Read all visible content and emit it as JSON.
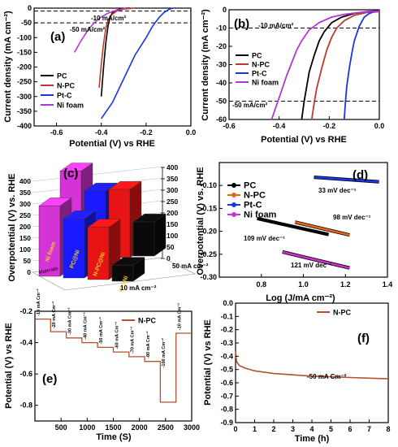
{
  "chart_data": [
    {
      "panel": "(a)",
      "type": "line",
      "xlabel": "Potential (V) vs RHE",
      "ylabel": "Current density (mA cm⁻²)",
      "xlim": [
        -0.7,
        0.0
      ],
      "ylim": [
        -400,
        0
      ],
      "xticks": [
        "-0.6",
        "-0.4",
        "-0.2",
        "0.0"
      ],
      "yticks": [
        "0",
        "-50",
        "-100",
        "-150",
        "-200",
        "-250",
        "-300",
        "-350",
        "-400"
      ],
      "reference_lines": [
        {
          "y": -10,
          "label": "-10 mA/cm²"
        },
        {
          "y": -50,
          "label": "-50 mA/cm²"
        }
      ],
      "legend_position": "bottom-left",
      "series": [
        {
          "name": "PC",
          "color": "#000000",
          "x": [
            -0.4,
            -0.39,
            -0.38,
            -0.37,
            -0.36,
            -0.35,
            -0.33,
            -0.31,
            -0.29,
            -0.27
          ],
          "y": [
            -300,
            -200,
            -120,
            -60,
            -30,
            -15,
            -6,
            -2,
            -1,
            0
          ]
        },
        {
          "name": "N-PC",
          "color": "#c0392b",
          "x": [
            -0.41,
            -0.4,
            -0.39,
            -0.38,
            -0.37,
            -0.35,
            -0.33,
            -0.3,
            -0.27,
            -0.25
          ],
          "y": [
            -270,
            -190,
            -120,
            -70,
            -40,
            -20,
            -9,
            -3,
            -1,
            0
          ]
        },
        {
          "name": "Pt-C",
          "color": "#1a35e6",
          "x": [
            -0.4,
            -0.35,
            -0.3,
            -0.25,
            -0.2,
            -0.17,
            -0.14,
            -0.12,
            -0.1,
            -0.08
          ],
          "y": [
            -375,
            -320,
            -240,
            -160,
            -100,
            -60,
            -30,
            -15,
            -5,
            0
          ]
        },
        {
          "name": "Ni foam",
          "color": "#b535d6",
          "x": [
            -0.52,
            -0.49,
            -0.46,
            -0.43,
            -0.4,
            -0.37,
            -0.34,
            -0.31,
            -0.29
          ],
          "y": [
            -150,
            -110,
            -75,
            -48,
            -30,
            -17,
            -9,
            -3,
            0
          ]
        }
      ]
    },
    {
      "panel": "(b)",
      "type": "line",
      "xlabel": "Potential (V) vs RHE",
      "ylabel": "Current density (mA cm⁻²)",
      "xlim": [
        -0.6,
        0.0
      ],
      "ylim": [
        -60,
        0
      ],
      "xticks": [
        "-0.6",
        "-0.4",
        "-0.2",
        "0.0"
      ],
      "yticks": [
        "0",
        "-10",
        "-20",
        "-30",
        "-40",
        "-50",
        "-60"
      ],
      "reference_lines": [
        {
          "y": -10,
          "label": "-10 mA/cm²"
        },
        {
          "y": -50,
          "label": "-50 mA/cm²"
        }
      ],
      "legend_position": "center-left",
      "series": [
        {
          "name": "PC",
          "color": "#000000",
          "x": [
            -0.31,
            -0.3,
            -0.29,
            -0.28,
            -0.26,
            -0.24,
            -0.22,
            -0.19,
            -0.15,
            -0.1,
            -0.05,
            0.0
          ],
          "y": [
            -60,
            -50,
            -42,
            -34,
            -25,
            -17,
            -12,
            -7,
            -4,
            -2,
            -1,
            -0.5
          ]
        },
        {
          "name": "N-PC",
          "color": "#c0392b",
          "x": [
            -0.27,
            -0.26,
            -0.25,
            -0.23,
            -0.21,
            -0.19,
            -0.17,
            -0.14,
            -0.1,
            -0.05,
            0.0
          ],
          "y": [
            -60,
            -51,
            -43,
            -32,
            -22,
            -15,
            -10,
            -6,
            -3,
            -1.5,
            -1
          ]
        },
        {
          "name": "Pt-C",
          "color": "#1a35e6",
          "x": [
            -0.14,
            -0.135,
            -0.13,
            -0.12,
            -0.11,
            -0.1,
            -0.08,
            -0.06,
            -0.04,
            -0.02,
            0.0
          ],
          "y": [
            -60,
            -50,
            -42,
            -32,
            -24,
            -17,
            -9,
            -4,
            -2,
            -1,
            -0.5
          ]
        },
        {
          "name": "Ni foam",
          "color": "#b535d6",
          "x": [
            -0.43,
            -0.41,
            -0.39,
            -0.37,
            -0.35,
            -0.33,
            -0.31,
            -0.28,
            -0.24,
            -0.19,
            -0.14,
            -0.08,
            -0.04,
            0.0
          ],
          "y": [
            -60,
            -52,
            -44,
            -36,
            -29,
            -22,
            -17,
            -11,
            -7,
            -4,
            -2.5,
            -1.5,
            -1,
            -0.8
          ]
        }
      ]
    },
    {
      "panel": "(c)",
      "type": "bar",
      "zlabel": "Overpotential (V) vs. RHE",
      "zticks": [
        "0",
        "50",
        "100",
        "150",
        "200",
        "250",
        "300",
        "350",
        "400"
      ],
      "zlim": [
        0,
        400
      ],
      "categories": [
        "Ni foam",
        "PC@Ni",
        "N-PC@Ni",
        "Pt@Ni"
      ],
      "depth_labels": [
        "10 mA cm⁻²",
        "50 mA cm⁻²"
      ],
      "depth_axis_label": "Materials",
      "colors": [
        "#d633d6",
        "#1a1aff",
        "#e61414",
        "#0a0a0a"
      ],
      "series": [
        {
          "name": "10 mA cm⁻²",
          "values": [
            310,
            260,
            230,
            70
          ]
        },
        {
          "name": "50 mA cm⁻²",
          "values": [
            395,
            300,
            300,
            150
          ]
        }
      ]
    },
    {
      "panel": "(d)",
      "type": "line",
      "xlabel": "Log (J/mA cm⁻²)",
      "ylabel": "Overpotential (V) vs. RHE",
      "xlim": [
        0.6,
        1.4
      ],
      "ylim": [
        -0.3,
        -0.05
      ],
      "xticks": [
        "0.8",
        "1.0",
        "1.2",
        "1.4"
      ],
      "yticks": [
        "-0.10",
        "-0.15",
        "-0.20",
        "-0.25",
        "-0.30"
      ],
      "legend_position": "top-left",
      "series": [
        {
          "name": "PC",
          "color": "#000000",
          "x": [
            0.78,
            1.12
          ],
          "y": [
            -0.172,
            -0.207
          ],
          "slope_label": "109 mV dec⁻¹"
        },
        {
          "name": "N-PC",
          "color": "#e6661a",
          "x": [
            0.96,
            1.22
          ],
          "y": [
            -0.18,
            -0.208
          ],
          "slope_label": "98 mV dec⁻¹"
        },
        {
          "name": "Pt-C",
          "color": "#1a35e6",
          "x": [
            1.05,
            1.36
          ],
          "y": [
            -0.082,
            -0.092
          ],
          "slope_label": "33 mV dec⁻¹"
        },
        {
          "name": "Ni foam",
          "color": "#cc33cc",
          "x": [
            0.9,
            1.22
          ],
          "y": [
            -0.245,
            -0.28
          ],
          "slope_label": "121 mV dec⁻¹"
        }
      ]
    },
    {
      "panel": "(e)",
      "type": "line",
      "xlabel": "Time (S)",
      "ylabel": "Potential (V) vs RHE",
      "xlim": [
        0,
        3000
      ],
      "ylim": [
        -0.9,
        -0.2
      ],
      "xticks": [
        "500",
        "1000",
        "1500",
        "2000",
        "2500",
        "3000"
      ],
      "yticks": [
        "-0.2",
        "-0.4",
        "-0.6",
        "-0.8"
      ],
      "legend_position": "top-right",
      "step_labels": [
        "-10 mA Cm⁻²",
        "-20 mA Cm⁻²",
        "-30 mA Cm⁻²",
        "-40 mA Cm⁻²",
        "-50 mA Cm⁻²",
        "-60 mA Cm⁻²",
        "-70 mA Cm⁻²",
        "-80 mA Cm⁻²",
        "-100 mA Cm⁻²",
        "-10 mA Cm⁻²"
      ],
      "series": [
        {
          "name": "N-PC",
          "color": "#b5512d",
          "x": [
            0,
            300,
            300,
            600,
            600,
            900,
            900,
            1200,
            1200,
            1500,
            1500,
            1800,
            1800,
            2100,
            2100,
            2400,
            2400,
            2700,
            2700,
            3000
          ],
          "y": [
            -0.25,
            -0.25,
            -0.33,
            -0.33,
            -0.37,
            -0.37,
            -0.4,
            -0.4,
            -0.43,
            -0.43,
            -0.46,
            -0.46,
            -0.49,
            -0.49,
            -0.52,
            -0.52,
            -0.78,
            -0.78,
            -0.34,
            -0.34
          ]
        }
      ]
    },
    {
      "panel": "(f)",
      "type": "line",
      "xlabel": "Time (h)",
      "ylabel": "Potential (V) vs RHE",
      "xlim": [
        0,
        8
      ],
      "ylim": [
        -0.9,
        0.0
      ],
      "xticks": [
        "0",
        "1",
        "2",
        "3",
        "4",
        "5",
        "6",
        "7",
        "8"
      ],
      "yticks": [
        "-0.9",
        "-0.8",
        "-0.7",
        "-0.6",
        "-0.5",
        "-0.4",
        "-0.3",
        "-0.2",
        "-0.1",
        "0.0"
      ],
      "legend_position": "top-right",
      "annotation": "-50 mA Cm⁻²",
      "series": [
        {
          "name": "N-PC",
          "color": "#b5512d",
          "x": [
            0.0,
            0.05,
            0.2,
            0.5,
            1.0,
            2.0,
            3.0,
            4.0,
            5.0,
            6.0,
            7.0,
            8.0
          ],
          "y": [
            -0.36,
            -0.44,
            -0.47,
            -0.49,
            -0.51,
            -0.53,
            -0.54,
            -0.55,
            -0.555,
            -0.56,
            -0.565,
            -0.57
          ]
        }
      ]
    }
  ]
}
